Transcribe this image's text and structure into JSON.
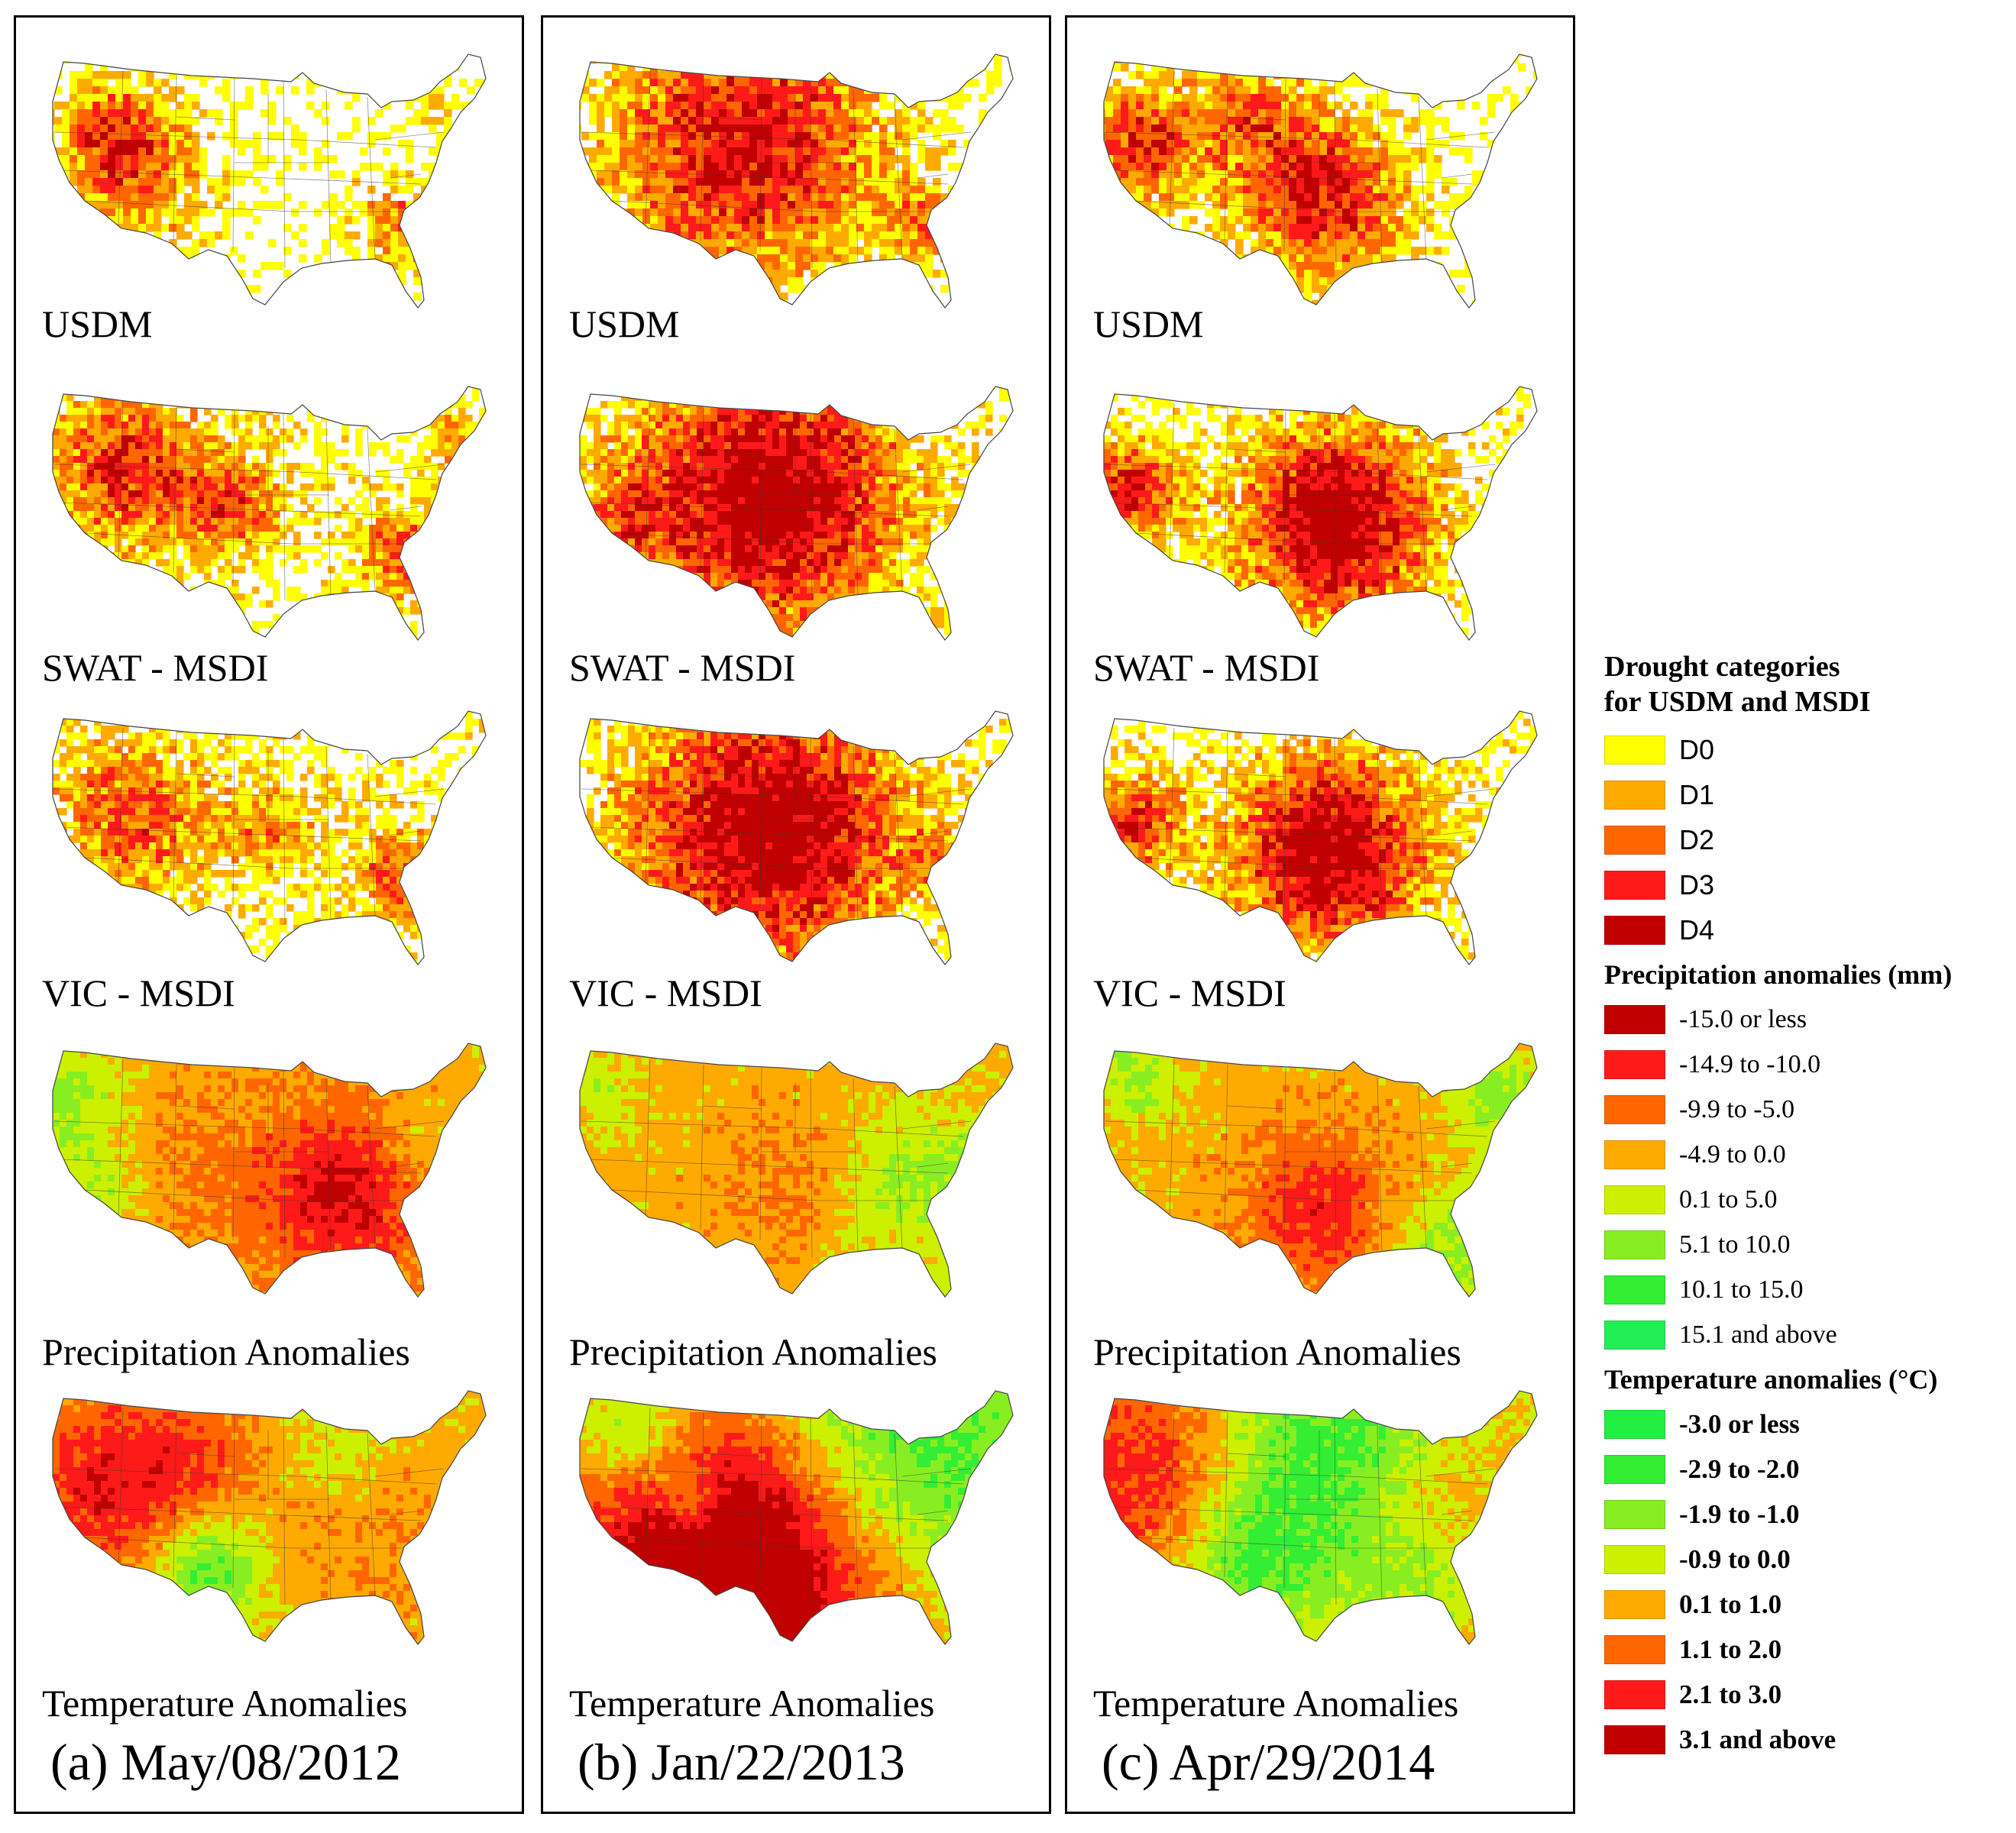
{
  "panels": [
    {
      "date": "(a) May/08/2012",
      "maps": [
        {
          "label": "USDM",
          "type": "drought",
          "severity": "moderate"
        },
        {
          "label": "SWAT - MSDI",
          "type": "drought",
          "severity": "moderate"
        },
        {
          "label": "VIC - MSDI",
          "type": "drought",
          "severity": "moderate"
        },
        {
          "label": "Precipitation Anomalies",
          "type": "precip",
          "severity": "dry-south"
        },
        {
          "label": "Temperature Anomalies",
          "type": "temp",
          "severity": "warm-west"
        }
      ]
    },
    {
      "date": "(b) Jan/22/2013",
      "maps": [
        {
          "label": "USDM",
          "type": "drought",
          "severity": "severe-center"
        },
        {
          "label": "SWAT - MSDI",
          "type": "drought",
          "severity": "severe-center"
        },
        {
          "label": "VIC - MSDI",
          "type": "drought",
          "severity": "severe-center"
        },
        {
          "label": "Precipitation Anomalies",
          "type": "precip",
          "severity": "wet-southeast"
        },
        {
          "label": "Temperature Anomalies",
          "type": "temp",
          "severity": "warm-south"
        }
      ]
    },
    {
      "date": "(c) Apr/29/2014",
      "maps": [
        {
          "label": "USDM",
          "type": "drought",
          "severity": "severe-southwest"
        },
        {
          "label": "SWAT - MSDI",
          "type": "drought",
          "severity": "severe-south-central"
        },
        {
          "label": "VIC - MSDI",
          "type": "drought",
          "severity": "severe-south-central"
        },
        {
          "label": "Precipitation Anomalies",
          "type": "precip",
          "severity": "dry-south-central"
        },
        {
          "label": "Temperature Anomalies",
          "type": "temp",
          "severity": "warm-west"
        }
      ]
    }
  ],
  "legend": {
    "drought_title_line1": "Drought categories",
    "drought_title_line2": "for USDM and MSDI",
    "drought": [
      {
        "label": "D0",
        "color": "#ffff00"
      },
      {
        "label": "D1",
        "color": "#ffaa00"
      },
      {
        "label": "D2",
        "color": "#ff6600"
      },
      {
        "label": "D3",
        "color": "#ff1a1a"
      },
      {
        "label": "D4",
        "color": "#c00000"
      }
    ],
    "precip_title": "Precipitation anomalies (mm)",
    "precip": [
      {
        "label": "-15.0 or less",
        "color": "#c00000"
      },
      {
        "label": "-14.9 to -10.0",
        "color": "#ff1a1a"
      },
      {
        "label": "-9.9 to -5.0",
        "color": "#ff6600"
      },
      {
        "label": "-4.9 to 0.0",
        "color": "#ffaa00"
      },
      {
        "label": "0.1 to 5.0",
        "color": "#ccf000"
      },
      {
        "label": "5.1 to 10.0",
        "color": "#88ee22"
      },
      {
        "label": "10.1 to 15.0",
        "color": "#33ee33"
      },
      {
        "label": "15.1 and above",
        "color": "#22ee55"
      }
    ],
    "temp_title": "Temperature anomalies (°C)",
    "temp": [
      {
        "label": "-3.0 or less",
        "color": "#22ee44"
      },
      {
        "label": "-2.9 to -2.0",
        "color": "#33ee33"
      },
      {
        "label": "-1.9 to -1.0",
        "color": "#88ee22"
      },
      {
        "label": "-0.9 to 0.0",
        "color": "#ccf000"
      },
      {
        "label": "0.1 to 1.0",
        "color": "#ffaa00"
      },
      {
        "label": "1.1 to 2.0",
        "color": "#ff6600"
      },
      {
        "label": "2.1 to 3.0",
        "color": "#ff1a1a"
      },
      {
        "label": "3.1 and above",
        "color": "#c00000"
      }
    ]
  }
}
